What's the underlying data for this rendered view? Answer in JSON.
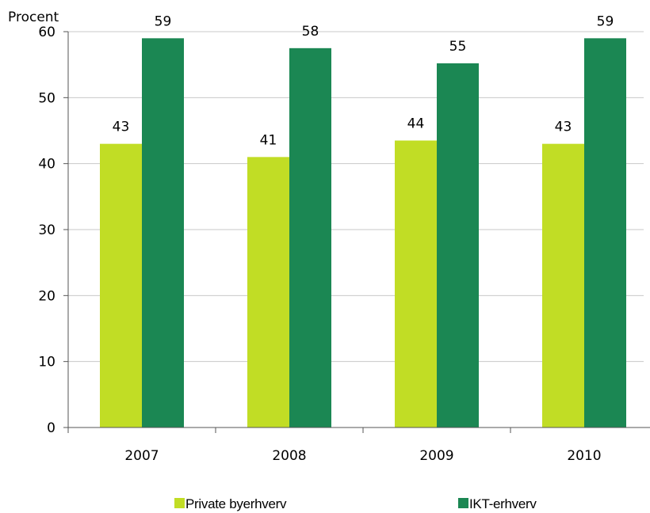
{
  "chart_data": {
    "type": "bar",
    "ylabel": "Procent",
    "ylim": [
      0,
      60
    ],
    "yticks": [
      0,
      10,
      20,
      30,
      40,
      50,
      60
    ],
    "categories": [
      "2007",
      "2008",
      "2009",
      "2010"
    ],
    "grid": true,
    "legend_position": "bottom",
    "series": [
      {
        "name": "Private byerhverv",
        "color": "#c1dd25",
        "values": [
          43,
          41,
          43.5,
          43
        ],
        "labels": [
          "43",
          "41",
          "44",
          "43"
        ]
      },
      {
        "name": "IKT-erhverv",
        "color": "#1b8753",
        "values": [
          59,
          57.5,
          55.2,
          59
        ],
        "labels": [
          "59",
          "58",
          "55",
          "59"
        ]
      }
    ]
  }
}
